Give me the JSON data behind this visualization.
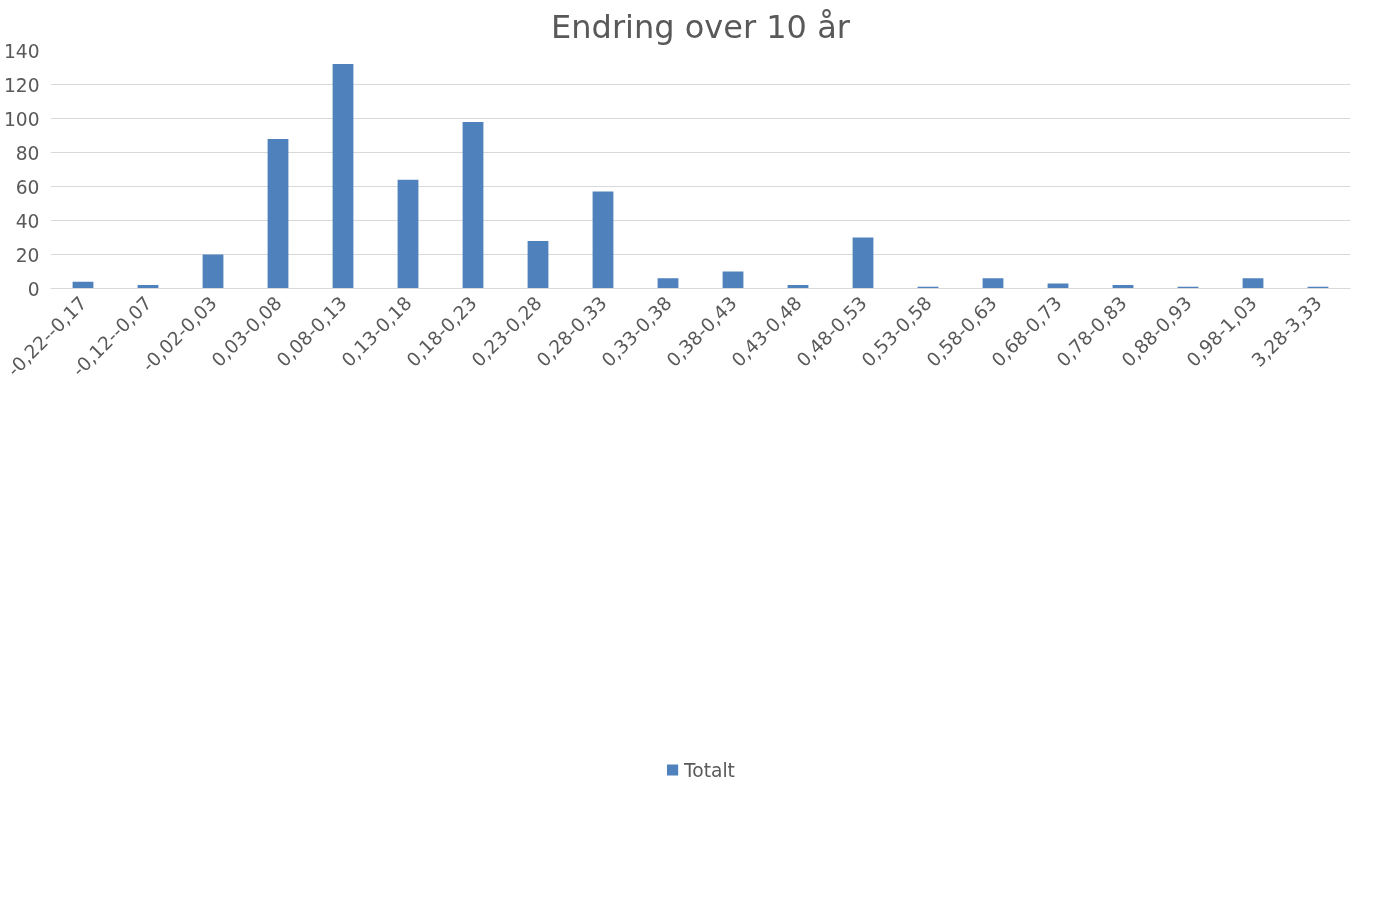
{
  "chart_data": {
    "type": "bar",
    "title": "Endring over 10 år",
    "categories": [
      "-0,22--0,17",
      "-0,12--0,07",
      "-0,02-0,03",
      "0,03-0,08",
      "0,08-0,13",
      "0,13-0,18",
      "0,18-0,23",
      "0,23-0,28",
      "0,28-0,33",
      "0,33-0,38",
      "0,38-0,43",
      "0,43-0,48",
      "0,48-0,53",
      "0,53-0,58",
      "0,58-0,63",
      "0,68-0,73",
      "0,78-0,83",
      "0,88-0,93",
      "0,98-1,03",
      "3,28-3,33"
    ],
    "series": [
      {
        "name": "Totalt",
        "color": "#4f81bd",
        "values": [
          4,
          2,
          20,
          88,
          132,
          64,
          98,
          28,
          57,
          6,
          10,
          2,
          30,
          1,
          6,
          3,
          2,
          1,
          6,
          1
        ]
      }
    ],
    "ylim": [
      0,
      140
    ],
    "yticks": [
      0,
      20,
      40,
      60,
      80,
      100,
      120,
      140
    ],
    "grid": "y",
    "legend": "bottom"
  }
}
